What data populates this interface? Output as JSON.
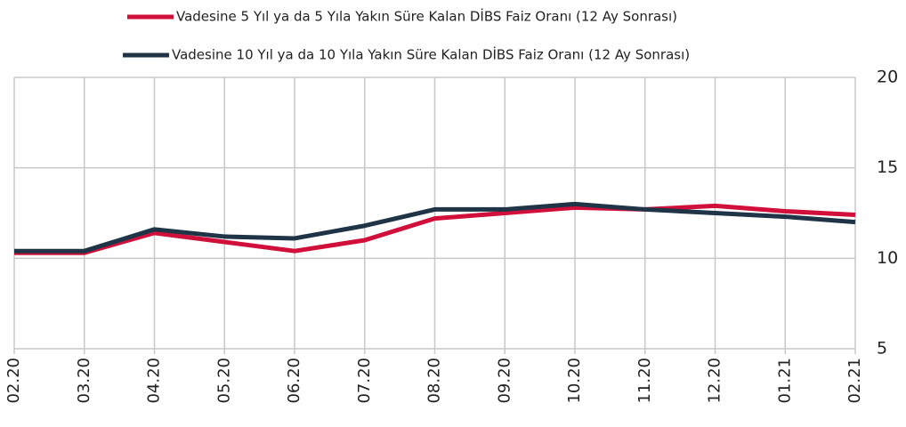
{
  "chart_data": {
    "type": "line",
    "categories": [
      "02.20",
      "03.20",
      "04.20",
      "05.20",
      "06.20",
      "07.20",
      "08.20",
      "09.20",
      "10.20",
      "11.20",
      "12.20",
      "01.21",
      "02.21"
    ],
    "series": [
      {
        "name": "Vadesine 5 Yıl ya da 5 Yıla Yakın Süre Kalan DİBS Faiz Oranı (12 Ay Sonrası)",
        "color": "#d0103a",
        "values": [
          10.3,
          10.3,
          11.4,
          10.9,
          10.4,
          11.0,
          12.2,
          12.5,
          12.8,
          12.7,
          12.9,
          12.6,
          12.4
        ]
      },
      {
        "name": "Vadesine 10 Yıl ya da 10 Yıla Yakın Süre Kalan DİBS Faiz Oranı (12 Ay Sonrası)",
        "color": "#1f3447",
        "values": [
          10.4,
          10.4,
          11.6,
          11.2,
          11.1,
          11.8,
          12.7,
          12.7,
          13.0,
          12.7,
          12.5,
          12.3,
          12.0
        ]
      }
    ],
    "ylim": [
      5,
      20
    ],
    "yticks": [
      5,
      10,
      15,
      20
    ],
    "y_axis_side": "right",
    "grid": true,
    "legend": "top"
  }
}
